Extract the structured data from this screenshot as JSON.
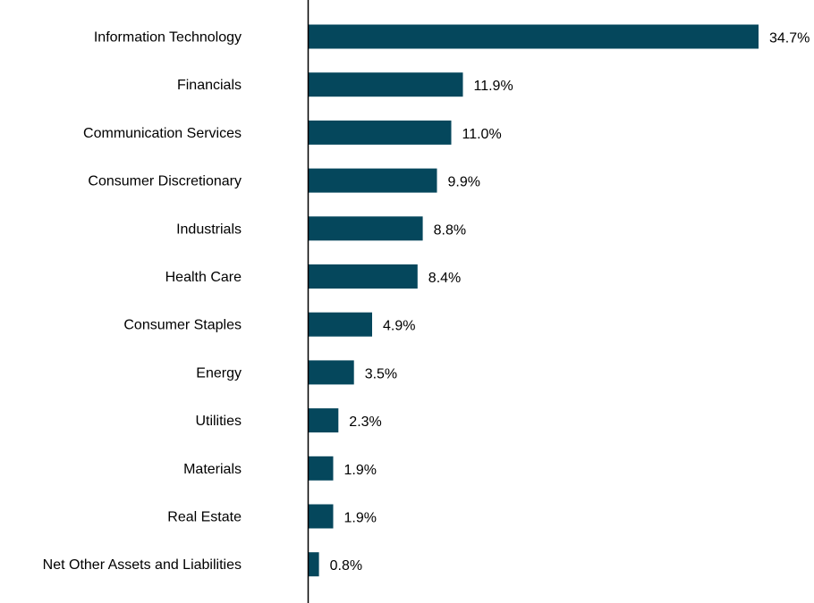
{
  "chart_data": {
    "type": "bar",
    "orientation": "horizontal",
    "categories": [
      "Information Technology",
      "Financials",
      "Communication Services",
      "Consumer Discretionary",
      "Industrials",
      "Health Care",
      "Consumer Staples",
      "Energy",
      "Utilities",
      "Materials",
      "Real Estate",
      "Net Other Assets and Liabilities"
    ],
    "values": [
      34.7,
      11.9,
      11.0,
      9.9,
      8.8,
      8.4,
      4.9,
      3.5,
      2.3,
      1.9,
      1.9,
      0.8
    ],
    "value_labels": [
      "34.7%",
      "11.9%",
      "11.0%",
      "9.9%",
      "8.8%",
      "8.4%",
      "4.9%",
      "3.5%",
      "2.3%",
      "1.9%",
      "1.9%",
      "0.8%"
    ],
    "unit": "%",
    "xlim": [
      0,
      34.7
    ],
    "grid": false,
    "bar_color": "#05475c",
    "axis_color": "#000000"
  }
}
